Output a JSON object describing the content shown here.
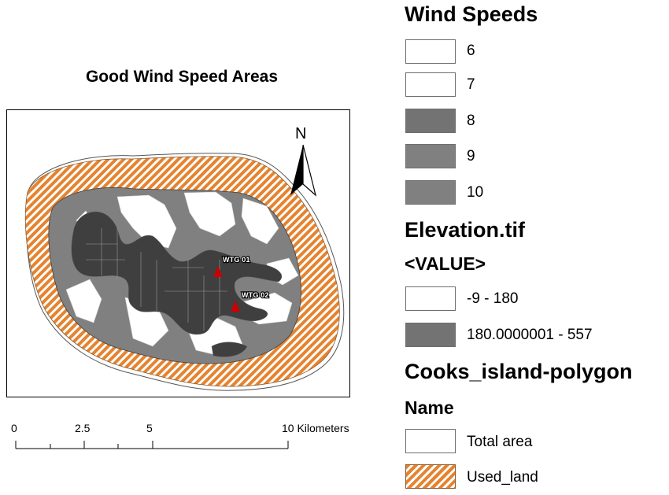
{
  "map": {
    "title": "Good Wind Speed Areas",
    "north_label": "N",
    "turbines": [
      {
        "label": "WTG 01",
        "color": "#cc0000"
      },
      {
        "label": "WTG 02",
        "color": "#cc0000"
      }
    ]
  },
  "scale_bar": {
    "ticks": [
      "0",
      "2.5",
      "5",
      "10 Kilometers"
    ]
  },
  "legend": {
    "wind_speeds": {
      "heading": "Wind Speeds",
      "items": [
        {
          "label": "6",
          "color": "#ffffff"
        },
        {
          "label": "7",
          "color": "#ffffff"
        },
        {
          "label": "8",
          "color": "#737373"
        },
        {
          "label": "9",
          "color": "#808080"
        },
        {
          "label": "10",
          "color": "#808080"
        }
      ]
    },
    "elevation": {
      "heading": "Elevation.tif",
      "subheading": "<VALUE>",
      "items": [
        {
          "label": "-9 - 180",
          "color": "#ffffff"
        },
        {
          "label": "180.0000001 - 557",
          "color": "#737373"
        }
      ]
    },
    "polygon": {
      "heading": "Cooks_island-polygon",
      "subheading": "Name",
      "items": [
        {
          "label": "Total area",
          "color": "#ffffff"
        },
        {
          "label": "Used_land",
          "color": "#e5832f",
          "pattern": "diagonal-hatch"
        }
      ]
    }
  }
}
